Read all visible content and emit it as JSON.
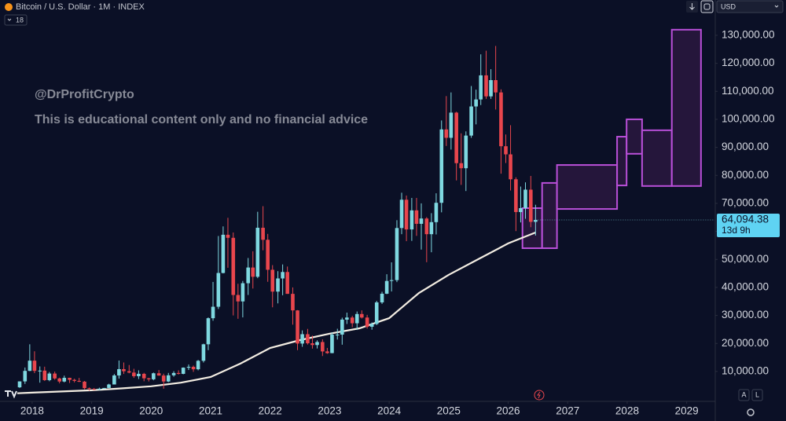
{
  "chart_data": {
    "type": "candlestick",
    "title": "Bitcoin / U.S. Dollar · 1M · INDEX",
    "indicator_count": "18",
    "currency": "USD",
    "annotations": [
      "@DrProfitCrypto",
      "This is educational content only and no financial advice"
    ],
    "scale_buttons": [
      "A",
      "L"
    ],
    "up_color": "#7fd8e0",
    "down_color": "#e8464d",
    "grid": false,
    "log_scale": false,
    "xlim": [
      2017.46,
      2029.48
    ],
    "ylim": [
      -400,
      142600
    ],
    "xticks": [
      2018,
      2019,
      2020,
      2021,
      2022,
      2023,
      2024,
      2025,
      2026,
      2027,
      2028,
      2029
    ],
    "yticks": [
      {
        "value": 10000,
        "label": "10,000.00"
      },
      {
        "value": 20000,
        "label": "20,000.00"
      },
      {
        "value": 30000,
        "label": "30,000.00"
      },
      {
        "value": 40000,
        "label": "40,000.00"
      },
      {
        "value": 50000,
        "label": "50,000.00"
      },
      {
        "value": 60000,
        "label": "60,000.00"
      },
      {
        "value": 70000,
        "label": "70,000.00"
      },
      {
        "value": 80000,
        "label": "80,000.00"
      },
      {
        "value": 90000,
        "label": "90,000.00"
      },
      {
        "value": 100000,
        "label": "100,000.00"
      },
      {
        "value": 110000,
        "label": "110,000.00"
      },
      {
        "value": 120000,
        "label": "120,000.00"
      },
      {
        "value": 130000,
        "label": "130,000.00"
      }
    ],
    "x": [
      2017.79,
      2017.88,
      2017.96,
      2018.04,
      2018.13,
      2018.21,
      2018.29,
      2018.38,
      2018.46,
      2018.54,
      2018.63,
      2018.71,
      2018.79,
      2018.88,
      2018.96,
      2019.04,
      2019.13,
      2019.21,
      2019.29,
      2019.38,
      2019.46,
      2019.54,
      2019.63,
      2019.71,
      2019.79,
      2019.88,
      2019.96,
      2020.04,
      2020.13,
      2020.21,
      2020.29,
      2020.38,
      2020.46,
      2020.54,
      2020.63,
      2020.71,
      2020.79,
      2020.88,
      2020.96,
      2021.04,
      2021.13,
      2021.21,
      2021.29,
      2021.38,
      2021.46,
      2021.54,
      2021.63,
      2021.71,
      2021.79,
      2021.88,
      2021.96,
      2022.04,
      2022.13,
      2022.21,
      2022.29,
      2022.38,
      2022.46,
      2022.54,
      2022.63,
      2022.71,
      2022.79,
      2022.88,
      2022.96,
      2023.04,
      2023.13,
      2023.21,
      2023.29,
      2023.38,
      2023.46,
      2023.54,
      2023.63,
      2023.71,
      2023.79,
      2023.88,
      2023.96,
      2024.04,
      2024.13,
      2024.21,
      2024.29,
      2024.38,
      2024.46,
      2024.54,
      2024.63,
      2024.71,
      2024.79,
      2024.88,
      2024.96,
      2025.04,
      2025.13,
      2025.21,
      2025.29,
      2025.38,
      2025.46,
      2025.54,
      2025.63,
      2025.71,
      2025.79,
      2025.88,
      2025.96,
      2026.04,
      2026.13,
      2026.21,
      2026.29,
      2026.38,
      2026.46
    ],
    "open": [
      4340,
      6450,
      10200,
      13850,
      10200,
      10300,
      6900,
      9250,
      7500,
      6400,
      7730,
      7000,
      6630,
      6370,
      4020,
      3740,
      3460,
      3850,
      4100,
      5350,
      8570,
      10820,
      10080,
      9600,
      8300,
      9150,
      7550,
      7200,
      9350,
      8540,
      6420,
      8620,
      9450,
      9140,
      11350,
      11650,
      10780,
      13800,
      19700,
      29000,
      33100,
      45150,
      58800,
      57700,
      37300,
      35000,
      41500,
      47100,
      43800,
      61300,
      57000,
      46300,
      38500,
      43200,
      45500,
      37700,
      31800,
      19950,
      23300,
      20050,
      19430,
      20500,
      17150,
      16550,
      23150,
      23150,
      28500,
      29250,
      27200,
      30500,
      29250,
      25950,
      26950,
      34650,
      37750,
      42300,
      42600,
      61200,
      71300,
      60700,
      67500,
      62700,
      64600,
      59000,
      63300,
      70200,
      96400,
      93400,
      102400,
      84350,
      82550,
      94200,
      104600,
      107100,
      115700,
      108200,
      114000,
      109600,
      90400,
      87500,
      78600,
      66900,
      68300,
      74900,
      63400
    ],
    "high": [
      6470,
      11400,
      19700,
      17200,
      11800,
      11700,
      9800,
      9950,
      7780,
      8500,
      7760,
      7400,
      7700,
      6600,
      4250,
      4100,
      4210,
      4120,
      5600,
      9080,
      13900,
      13200,
      12300,
      10950,
      10400,
      9500,
      7750,
      9600,
      10500,
      9200,
      9480,
      10080,
      10400,
      11450,
      12480,
      12100,
      14100,
      19900,
      29300,
      41950,
      58350,
      61780,
      64850,
      59600,
      41300,
      42300,
      50500,
      52900,
      67000,
      69000,
      59100,
      47950,
      45800,
      48200,
      47450,
      40000,
      31900,
      24650,
      25200,
      22800,
      21100,
      21450,
      18400,
      23950,
      25250,
      29200,
      31000,
      29850,
      31400,
      31800,
      30200,
      27500,
      35200,
      38450,
      44700,
      48950,
      64000,
      73800,
      72800,
      71950,
      71950,
      70000,
      65100,
      66500,
      73600,
      99600,
      108300,
      109600,
      102700,
      95000,
      95700,
      111900,
      110600,
      123200,
      124500,
      117900,
      126200,
      110700,
      94600,
      97900,
      79300,
      76000,
      77500,
      79800,
      69500
    ],
    "low": [
      4110,
      5550,
      10100,
      9400,
      6000,
      6600,
      6500,
      7050,
      5750,
      6100,
      5880,
      6100,
      6200,
      3650,
      3150,
      3350,
      3400,
      3700,
      4080,
      5350,
      7450,
      9100,
      9350,
      7700,
      7300,
      6500,
      6430,
      6850,
      8450,
      3850,
      6150,
      8120,
      8900,
      8980,
      10520,
      9850,
      10400,
      13200,
      17600,
      28100,
      32300,
      45000,
      47000,
      30000,
      28800,
      29300,
      37300,
      39600,
      43300,
      53250,
      42000,
      32900,
      34300,
      37200,
      37700,
      26700,
      17600,
      18800,
      19600,
      18150,
      18200,
      15500,
      16300,
      16500,
      21400,
      19550,
      26950,
      25800,
      24800,
      28900,
      25300,
      24900,
      26550,
      34100,
      37600,
      38550,
      41900,
      59000,
      56500,
      56600,
      58400,
      53500,
      49000,
      52550,
      58900,
      66800,
      90500,
      89200,
      78200,
      76600,
      74400,
      93400,
      98200,
      105100,
      107300,
      107300,
      103500,
      80600,
      84400,
      74600,
      60100,
      63200,
      64500,
      61500,
      58500
    ],
    "close": [
      6450,
      10200,
      13850,
      10200,
      10300,
      6900,
      9250,
      7500,
      6400,
      7730,
      7000,
      6630,
      6370,
      4020,
      3740,
      3460,
      3850,
      4100,
      5350,
      8570,
      10820,
      10080,
      9600,
      8300,
      9150,
      7550,
      7200,
      9350,
      8540,
      6420,
      8620,
      9450,
      9140,
      11350,
      11650,
      10780,
      13800,
      19700,
      29000,
      33100,
      45150,
      58800,
      57700,
      37300,
      35000,
      41500,
      47100,
      43800,
      61300,
      57000,
      46300,
      38500,
      43200,
      45500,
      37700,
      31800,
      19950,
      23300,
      20050,
      19430,
      20500,
      17150,
      16550,
      23150,
      23150,
      28500,
      29250,
      27200,
      30500,
      29250,
      25950,
      26950,
      34650,
      37750,
      42300,
      42600,
      61200,
      71300,
      60700,
      67500,
      62700,
      64600,
      59000,
      63300,
      70200,
      96400,
      93400,
      102400,
      84350,
      82550,
      94200,
      104600,
      107100,
      115700,
      108200,
      114000,
      109600,
      90400,
      87500,
      78600,
      66900,
      68300,
      74900,
      63400,
      64094.38
    ],
    "overlay": {
      "color": "#f3ede2",
      "x": [
        2017.75,
        2018,
        2018.5,
        2019,
        2019.5,
        2020,
        2020.5,
        2021,
        2021.5,
        2022,
        2022.5,
        2023,
        2023.5,
        2024,
        2024.5,
        2025,
        2025.5,
        2026,
        2026.46
      ],
      "values": [
        2200,
        2430,
        2850,
        3270,
        3950,
        4700,
        6000,
        8000,
        12800,
        18400,
        21200,
        23500,
        25400,
        29000,
        38000,
        44500,
        50100,
        55700,
        59600
      ]
    },
    "boxes": {
      "stroke": "#b94fd8",
      "fill": "#2a1840",
      "x0": [
        2026.24,
        2026.57,
        2026.82,
        2027.83,
        2027.99,
        2028.25,
        2028.75
      ],
      "x1": [
        2026.57,
        2026.82,
        2027.83,
        2027.99,
        2028.25,
        2028.75,
        2029.24
      ],
      "low": [
        54000,
        54000,
        68000,
        76400,
        87700,
        76200,
        76200
      ],
      "high": [
        68300,
        77300,
        83700,
        93800,
        100000,
        96100,
        132000
      ]
    },
    "last_price": {
      "value": 64094.38,
      "label": "64,094.38"
    },
    "countdown": "13d 9h"
  }
}
